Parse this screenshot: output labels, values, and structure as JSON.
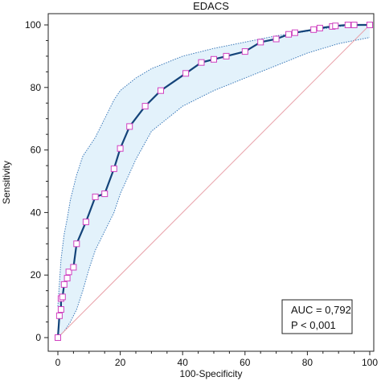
{
  "chart_data": {
    "type": "line",
    "title": "EDACS",
    "xlabel": "100-Specificity",
    "ylabel": "Sensitivity",
    "xlim": [
      0,
      100
    ],
    "ylim": [
      0,
      100
    ],
    "x_ticks": [
      0,
      20,
      40,
      60,
      80,
      100
    ],
    "y_ticks": [
      0,
      20,
      40,
      60,
      80,
      100
    ],
    "grid": false,
    "colors": {
      "roc": "#14447a",
      "marker_edge": "#d040c0",
      "ci_fill": "#e3f2fb",
      "ci_edge": "#3a78b8",
      "diagonal": "#e8a0a8"
    },
    "series": [
      {
        "x": [
          0,
          0.5,
          1,
          1,
          1.5,
          2,
          3,
          3.5,
          5,
          6,
          9,
          12,
          15,
          18,
          20,
          23,
          28,
          33,
          41,
          46,
          50,
          54,
          60,
          65,
          70,
          74,
          76,
          82,
          84,
          88,
          89,
          93,
          95,
          100
        ],
        "y": [
          0,
          7,
          9,
          12.5,
          13,
          17,
          19,
          21,
          22.5,
          30,
          37,
          45,
          46,
          54,
          60.5,
          67.5,
          74,
          79,
          84.5,
          88,
          89,
          90,
          91.5,
          94.5,
          95.5,
          97,
          97.5,
          98.5,
          99,
          99.5,
          99.7,
          100,
          100,
          100
        ]
      },
      {
        "x": [
          0,
          1,
          2,
          3,
          4,
          6,
          8,
          10,
          12,
          15,
          18,
          20,
          25,
          30,
          40,
          50,
          60,
          70,
          80,
          90,
          100
        ],
        "y": [
          10,
          25,
          33,
          38,
          44,
          52,
          58,
          61,
          64,
          70,
          76,
          79,
          83,
          86,
          90,
          92.5,
          94.5,
          96.5,
          98,
          99.5,
          100
        ]
      },
      {
        "x": [
          0,
          2,
          4,
          6,
          8,
          10,
          12,
          15,
          18,
          20,
          25,
          30,
          40,
          50,
          60,
          70,
          80,
          90,
          100
        ],
        "y": [
          0,
          2,
          5,
          9,
          15,
          22,
          28,
          34,
          40,
          46,
          57,
          66,
          74,
          79,
          83,
          87,
          91,
          94,
          96
        ]
      }
    ],
    "annotation": {
      "auc": "AUC = 0,792",
      "p": "P < 0,001"
    }
  }
}
